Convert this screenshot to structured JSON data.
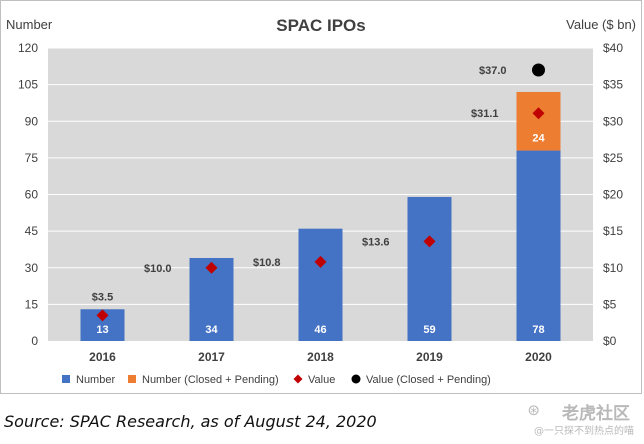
{
  "chart_data": {
    "type": "bar",
    "title": "SPAC IPOs",
    "ylabel_left": "Number",
    "ylabel_right": "Value ($ bn)",
    "categories": [
      "2016",
      "2017",
      "2018",
      "2019",
      "2020"
    ],
    "ylim_left": [
      0,
      120
    ],
    "yticks_left": [
      0,
      15,
      30,
      45,
      60,
      75,
      90,
      105,
      120
    ],
    "ylim_right": [
      0,
      40
    ],
    "yticks_right": [
      "$0",
      "$5",
      "$10",
      "$15",
      "$20",
      "$25",
      "$30",
      "$35",
      "$40"
    ],
    "series": [
      {
        "name": "Number",
        "kind": "bar",
        "axis": "left",
        "color": "#4472c4",
        "values": [
          13,
          34,
          46,
          59,
          78
        ],
        "labels": [
          "13",
          "34",
          "46",
          "59",
          "78"
        ]
      },
      {
        "name": "Number (Closed + Pending)",
        "kind": "stacked-bar",
        "axis": "left",
        "color": "#ed7d31",
        "values": [
          null,
          null,
          null,
          null,
          24
        ],
        "labels": [
          "",
          "",
          "",
          "",
          "24"
        ]
      },
      {
        "name": "Value",
        "kind": "marker-diamond",
        "axis": "right",
        "color": "#c00000",
        "values": [
          3.5,
          10.0,
          10.8,
          13.6,
          31.1
        ],
        "labels": [
          "$3.5",
          "$10.0",
          "$10.8",
          "$13.6",
          "$31.1"
        ]
      },
      {
        "name": "Value (Closed + Pending)",
        "kind": "marker-circle",
        "axis": "right",
        "color": "#000000",
        "values": [
          null,
          null,
          null,
          null,
          37.0
        ],
        "labels": [
          "",
          "",
          "",
          "",
          "$37.0"
        ]
      }
    ],
    "grid": true,
    "legend": "bottom"
  },
  "footer": {
    "source": "Source: SPAC Research, as of August 24, 2020"
  },
  "watermark": {
    "logo": "⊛",
    "main": "老虎社区",
    "sub": "@一只探不到热点的喵"
  },
  "colors": {
    "plot_bg": "#d9d9d9",
    "frame": "#bfbfbf",
    "grid": "#ffffff",
    "text": "#404040"
  }
}
